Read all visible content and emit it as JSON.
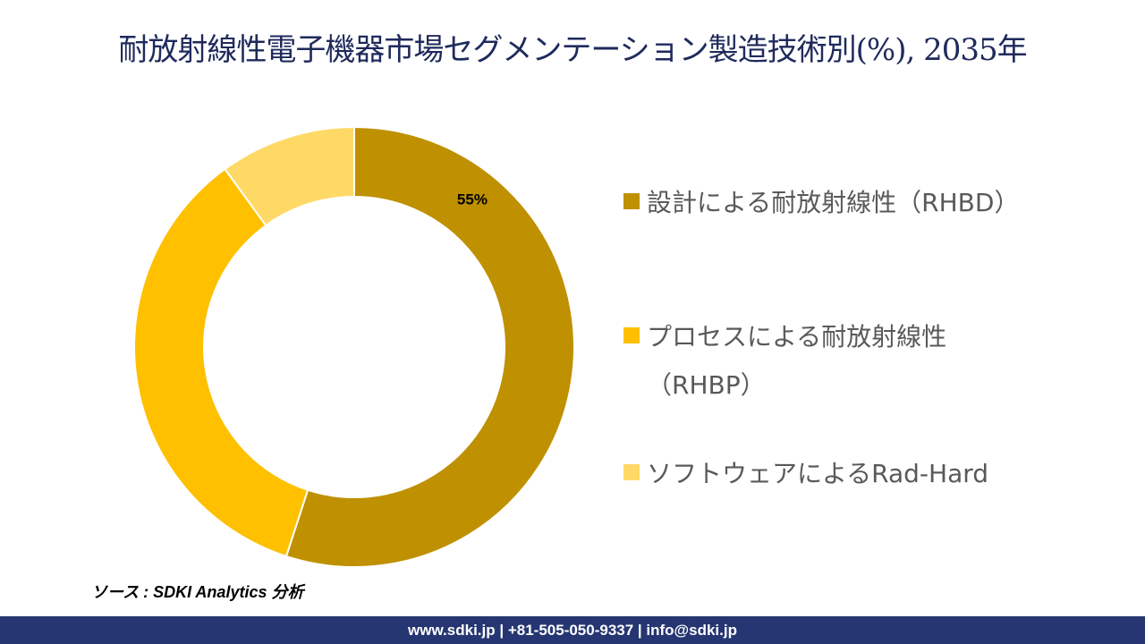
{
  "title": "耐放射線性電子機器市場セグメンテーション製造技術別(%), 2035年",
  "chart_data": {
    "type": "pie",
    "variant": "donut",
    "title": "耐放射線性電子機器市場セグメンテーション製造技術別(%), 2035年",
    "categories": [
      "設計による耐放射線性（RHBD）",
      "プロセスによる耐放射線性（RHBP）",
      "ソフトウェアによるRad-Hard"
    ],
    "values": [
      55,
      35,
      10
    ],
    "data_labels": [
      "55%",
      "",
      ""
    ],
    "colors": [
      "#bf9000",
      "#ffc000",
      "#ffd966"
    ],
    "legend_position": "right"
  },
  "legend": {
    "items": [
      {
        "label": "設計による耐放射線性（RHBD）"
      },
      {
        "label_line1": "プロセスによる耐放射線性",
        "label_line2": "（RHBP）"
      },
      {
        "label": "ソフトウェアによるRad-Hard"
      }
    ]
  },
  "source": "ソース : SDKI Analytics 分析",
  "footer": "www.sdki.jp | +81-505-050-9337 | info@sdki.jp"
}
